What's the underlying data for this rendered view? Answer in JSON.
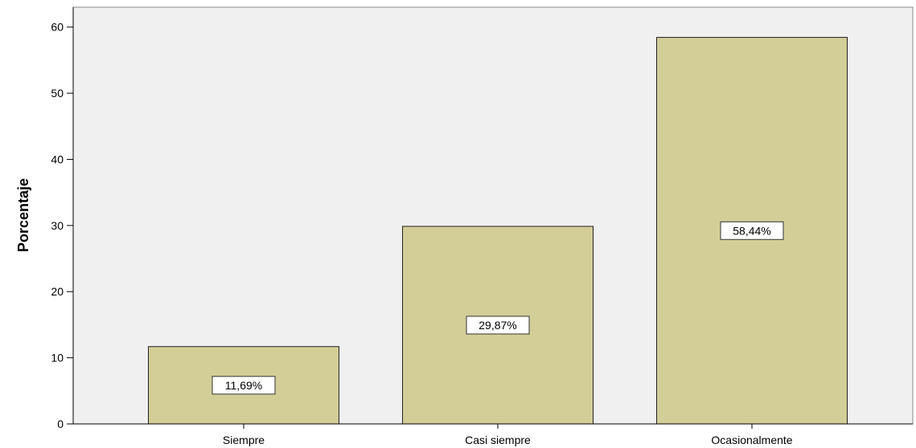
{
  "chart_data": {
    "type": "bar",
    "categories": [
      "Siempre",
      "Casi siempre",
      "Ocasionalmente"
    ],
    "values": [
      11.69,
      29.87,
      58.44
    ],
    "data_labels": [
      "11,69%",
      "29,87%",
      "58,44%"
    ],
    "title": "",
    "xlabel": "",
    "ylabel": "Porcentaje",
    "ylim": [
      0,
      63
    ],
    "yticks": [
      0,
      10,
      20,
      30,
      40,
      50,
      60
    ],
    "grid": false,
    "colors": {
      "bar": "#d3cd98",
      "plot_bg": "#f0f0f0",
      "bar_stroke": "#222222"
    }
  }
}
